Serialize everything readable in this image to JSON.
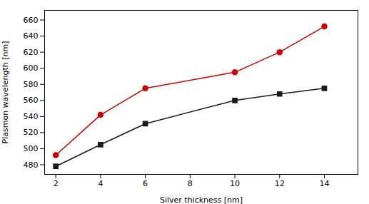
{
  "chart_data": {
    "type": "line",
    "x": [
      2,
      4,
      6,
      10,
      12,
      14
    ],
    "series": [
      {
        "color": "#1a1a1a",
        "marker": "square",
        "values": [
          478,
          505,
          531,
          560,
          568,
          575
        ]
      },
      {
        "color": "#cc0000",
        "marker": "circle",
        "values": [
          492,
          542,
          575,
          595,
          620,
          652
        ]
      }
    ],
    "xlabel": "Silver thickness [nm]",
    "ylabel": "Plasmon wavelength [nm]",
    "xlim": [
      1.5,
      15.5
    ],
    "ylim": [
      468,
      672
    ],
    "xticks": [
      2,
      4,
      6,
      8,
      10,
      12,
      14
    ],
    "yticks": [
      480,
      500,
      520,
      540,
      560,
      580,
      600,
      620,
      640,
      660
    ],
    "grid": false
  }
}
